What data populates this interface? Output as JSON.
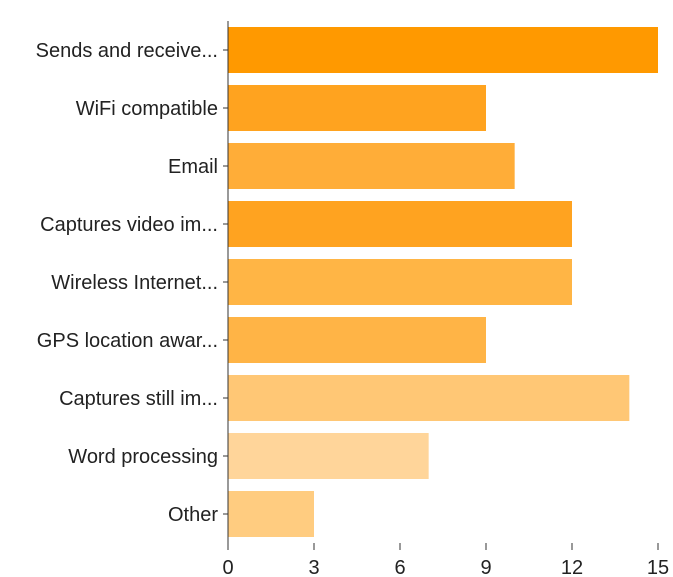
{
  "chart_data": {
    "type": "bar",
    "orientation": "horizontal",
    "title": "",
    "xlabel": "",
    "ylabel": "",
    "categories": [
      "Sends and receive...",
      "WiFi compatible",
      "Email",
      "Captures video im...",
      "Wireless Internet...",
      "GPS location awar...",
      "Captures still im...",
      "Word processing",
      "Other"
    ],
    "values": [
      15,
      9,
      10,
      12,
      12,
      9,
      14,
      7,
      3
    ],
    "bar_colors": [
      "#ff9900",
      "#ffa31f",
      "#ffad38",
      "#ffa320",
      "#ffb545",
      "#ffb446",
      "#ffc775",
      "#ffd59a",
      "#ffcc80"
    ],
    "xlim": [
      0,
      15
    ],
    "xticks": [
      0,
      3,
      6,
      9,
      12,
      15
    ],
    "xtick_labels": [
      "0",
      "3",
      "6",
      "9",
      "12",
      "15"
    ],
    "grid": false,
    "legend": "none"
  }
}
